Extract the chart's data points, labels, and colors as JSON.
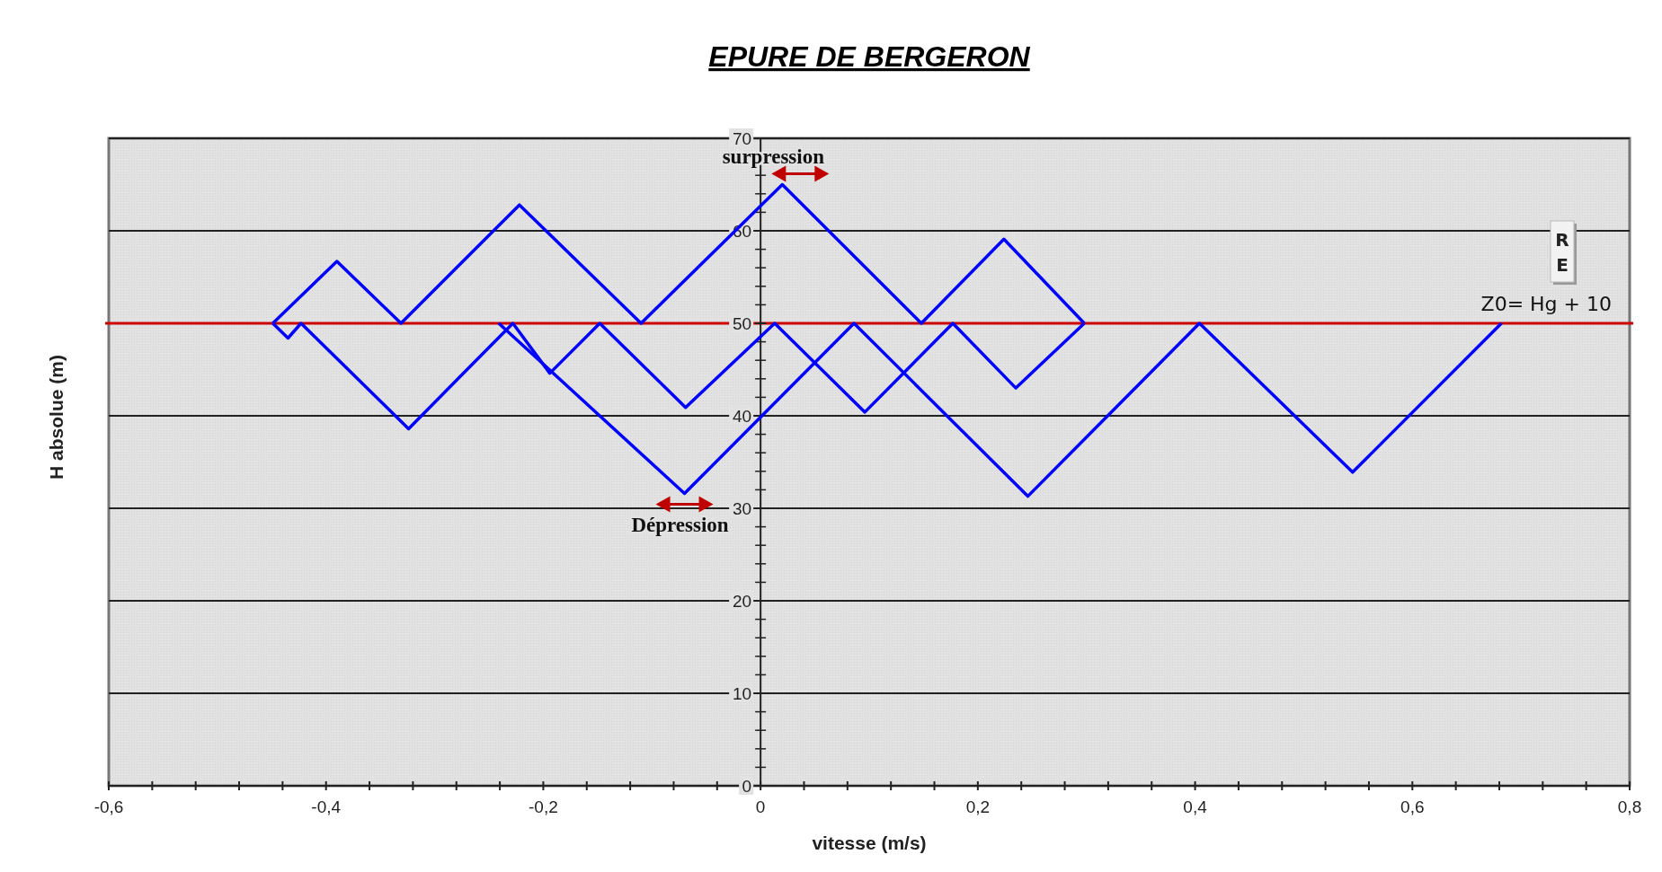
{
  "chart_data": {
    "type": "line",
    "title": "EPURE DE BERGERON",
    "xlabel": "vitesse (m/s)",
    "ylabel": "H absolue (m)",
    "series": [
      {
        "color": "#0000ff",
        "x": [
          -0.449,
          -0.39,
          -0.331,
          -0.222,
          -0.11,
          0.02,
          0.148,
          0.224,
          0.298
        ],
        "values": [
          50,
          56.7,
          50,
          62.8,
          50,
          65,
          50,
          59.1,
          50
        ]
      },
      {
        "color": "#0000ff",
        "x": [
          -0.449,
          -0.435,
          -0.423,
          -0.324,
          -0.228,
          -0.194,
          -0.148,
          -0.069,
          0.013,
          0.096,
          0.177,
          0.235,
          0.298
        ],
        "values": [
          50,
          48.4,
          50,
          38.6,
          50,
          44.6,
          50,
          40.9,
          50,
          40.4,
          50,
          43,
          50
        ]
      },
      {
        "color": "#0000ff",
        "x": [
          -0.241,
          -0.07,
          0.086,
          0.246,
          0.404,
          0.545,
          0.682
        ],
        "values": [
          50,
          31.6,
          50,
          31.3,
          50,
          33.9,
          50
        ]
      }
    ],
    "xlim": [
      -0.6,
      0.8
    ],
    "ylim": [
      0,
      70
    ],
    "xticks": [
      {
        "value": -0.6,
        "label": "-0,6"
      },
      {
        "value": -0.56,
        "label": null
      },
      {
        "value": -0.52,
        "label": null
      },
      {
        "value": -0.48,
        "label": null
      },
      {
        "value": -0.44,
        "label": null
      },
      {
        "value": -0.4,
        "label": "-0,4"
      },
      {
        "value": -0.36,
        "label": null
      },
      {
        "value": -0.32,
        "label": null
      },
      {
        "value": -0.28,
        "label": null
      },
      {
        "value": -0.24,
        "label": null
      },
      {
        "value": -0.2,
        "label": "-0,2"
      },
      {
        "value": -0.16,
        "label": null
      },
      {
        "value": -0.12,
        "label": null
      },
      {
        "value": -0.08,
        "label": null
      },
      {
        "value": -0.04,
        "label": null
      },
      0,
      {
        "value": 0.04,
        "label": null
      },
      {
        "value": 0.08,
        "label": null
      },
      {
        "value": 0.12,
        "label": null
      },
      {
        "value": 0.16,
        "label": null
      },
      {
        "value": 0.2,
        "label": "0,2"
      },
      {
        "value": 0.24,
        "label": null
      },
      {
        "value": 0.28,
        "label": null
      },
      {
        "value": 0.32,
        "label": null
      },
      {
        "value": 0.36,
        "label": null
      },
      {
        "value": 0.4,
        "label": "0,4"
      },
      {
        "value": 0.44,
        "label": null
      },
      {
        "value": 0.48,
        "label": null
      },
      {
        "value": 0.52,
        "label": null
      },
      {
        "value": 0.56,
        "label": null
      },
      {
        "value": 0.6,
        "label": "0,6"
      },
      {
        "value": 0.64,
        "label": null
      },
      {
        "value": 0.68,
        "label": null
      },
      {
        "value": 0.72,
        "label": null
      },
      {
        "value": 0.76,
        "label": null
      },
      {
        "value": 0.8,
        "label": "0,8"
      }
    ],
    "yticks": [
      0,
      10,
      20,
      30,
      40,
      50,
      60,
      70
    ],
    "grid": "y",
    "marker": "none",
    "line_style": "solid",
    "ref_lines": [
      {
        "axis": "y",
        "value": 50,
        "label": "Z0= Hg + 10",
        "color": "#cc0000"
      }
    ],
    "annotations": [
      {
        "text": "surpression",
        "x": 0.02,
        "y": 65
      },
      {
        "text": "Dépression",
        "x": -0.07,
        "y": 31.6
      },
      "RE"
    ]
  }
}
